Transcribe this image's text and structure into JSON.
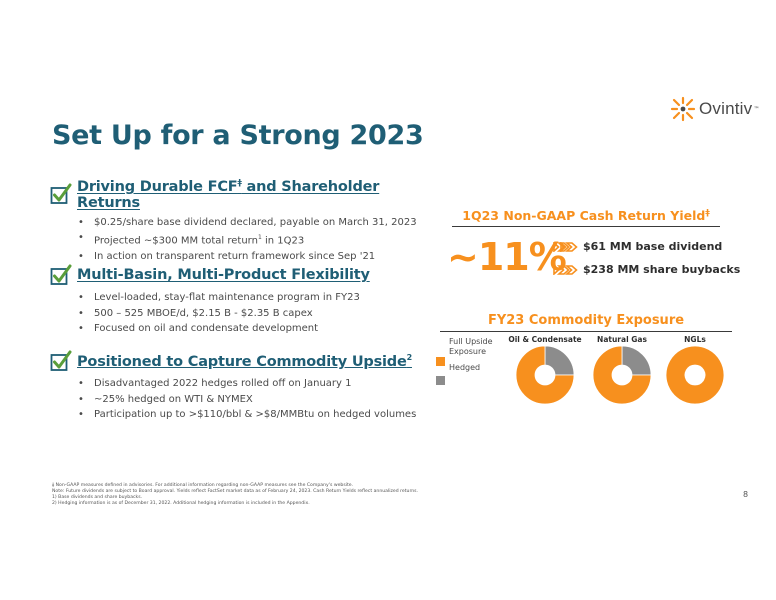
{
  "brand": {
    "name": "Ovintiv",
    "tm": "™",
    "orange": "#f7901e",
    "gray": "#8c8c8c",
    "teal": "#1f5e75"
  },
  "title": "Set Up for a Strong 2023",
  "sections": [
    {
      "title": "Driving Durable FCF",
      "title_sup": "ǂ",
      "title_suffix": " and Shareholder Returns",
      "bullets": [
        "$0.25/share base dividend declared, payable on March 31, 2023",
        "Projected ~$300 MM total return",
        "In action on transparent return framework since Sep '21"
      ],
      "bullet2_sup": "1",
      "bullet2_suffix": " in 1Q23"
    },
    {
      "title": "Multi-Basin, Multi-Product Flexibility",
      "bullets": [
        "Level-loaded, stay-flat maintenance program in FY23",
        "500 – 525 MBOE/d, $2.15 B - $2.35 B capex",
        "Focused on oil and condensate development"
      ]
    },
    {
      "title": "Positioned to Capture Commodity Upside",
      "title_sup": "2",
      "bullets": [
        "Disadvantaged 2022 hedges rolled off on January 1",
        "~25% hedged on WTI & NYMEX",
        "Participation up to >$110/bbl & >$8/MMBtu  on hedged volumes"
      ]
    }
  ],
  "cash_return": {
    "title": "1Q23 Non-GAAP Cash Return Yield",
    "title_sup": "ǂ",
    "yield": "~11%",
    "items": [
      "$61 MM base dividend",
      "$238 MM share buybacks"
    ]
  },
  "commodity": {
    "title": "FY23 Commodity Exposure",
    "legend": [
      {
        "label": "Full Upside Exposure",
        "color": "#f7901e"
      },
      {
        "label": "Hedged",
        "color": "#8c8c8c"
      }
    ],
    "pies": [
      {
        "label": "Oil & Condensate",
        "hedged_pct": 25
      },
      {
        "label": "Natural Gas",
        "hedged_pct": 25
      },
      {
        "label": "NGLs",
        "hedged_pct": 0
      }
    ]
  },
  "footnotes": [
    "ǂ Non-GAAP measures defined in advisories.  For additional information regarding non-GAAP measures see the Company's website.",
    "Note: Future dividends are subject to Board approval. Yields reflect FactSet market data as of February 24, 2023. Cash Return Yields reflect annualized returns.",
    "1) Base dividends and share buybacks.",
    "2) Hedging information is as of December 31, 2022. Additional hedging information is included in the Appendix."
  ],
  "page_number": "8"
}
